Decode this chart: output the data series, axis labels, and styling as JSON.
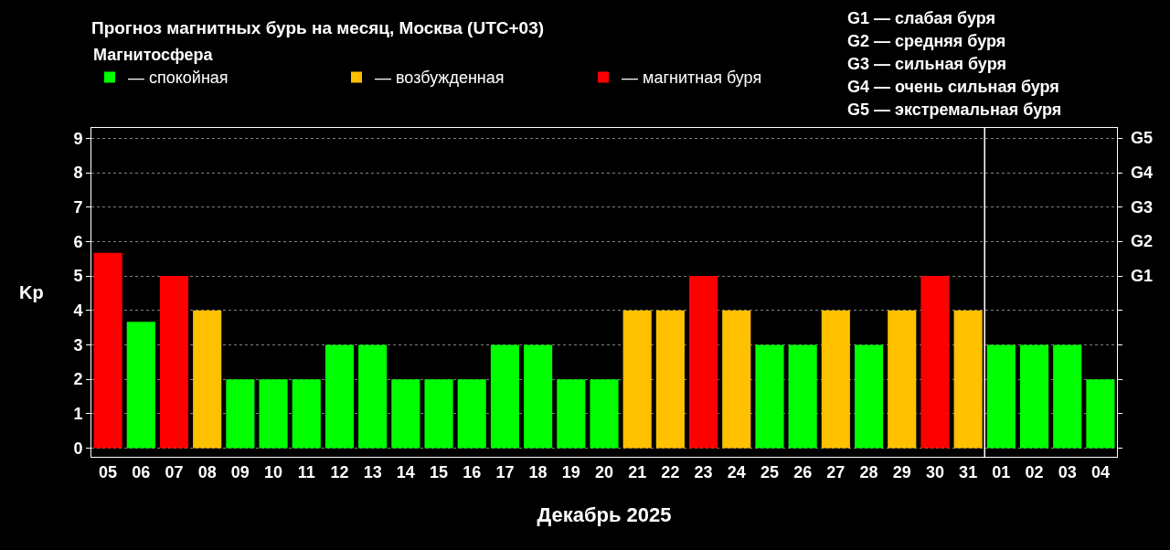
{
  "chart_data": {
    "type": "bar",
    "title": "Прогноз магнитных бурь на месяц, Москва (UTC+03)",
    "xlabel": "Декабрь 2025",
    "ylabel": "Kp",
    "legend_title": "Магнитосфера",
    "categories": [
      "05",
      "06",
      "07",
      "08",
      "09",
      "10",
      "11",
      "12",
      "13",
      "14",
      "15",
      "16",
      "17",
      "18",
      "19",
      "20",
      "21",
      "22",
      "23",
      "24",
      "25",
      "26",
      "27",
      "28",
      "29",
      "30",
      "31",
      "01",
      "02",
      "03",
      "04"
    ],
    "series": [
      {
        "name": "— спокойная",
        "color": "#00ff00",
        "values": [
          null,
          3.67,
          null,
          null,
          2,
          2,
          2,
          3,
          3,
          2,
          2,
          2,
          3,
          3,
          2,
          2,
          null,
          null,
          null,
          null,
          3,
          3,
          null,
          3,
          null,
          null,
          null,
          3,
          3,
          3,
          2
        ]
      },
      {
        "name": "— возбужденная",
        "color": "#ffc000",
        "values": [
          null,
          null,
          null,
          4,
          null,
          null,
          null,
          null,
          null,
          null,
          null,
          null,
          null,
          null,
          null,
          null,
          4,
          4,
          null,
          4,
          null,
          null,
          4,
          null,
          4,
          null,
          4,
          null,
          null,
          null,
          null
        ]
      },
      {
        "name": "— магнитная буря",
        "color": "#ff0000",
        "values": [
          5.67,
          null,
          5,
          null,
          null,
          null,
          null,
          null,
          null,
          null,
          null,
          null,
          null,
          null,
          null,
          null,
          null,
          null,
          5,
          null,
          null,
          null,
          null,
          null,
          null,
          5,
          null,
          null,
          null,
          null,
          null
        ]
      }
    ],
    "ylim": [
      -0.25,
      9.3
    ],
    "yticks": [
      0,
      1,
      2,
      3,
      4,
      5,
      6,
      7,
      8,
      9
    ],
    "ref_lines": [
      {
        "axis": "x",
        "value": "01",
        "color": "#ffffff"
      }
    ],
    "annotations": [
      "G1 — слабая буря",
      "G2 — средняя буря",
      "G3 — сильная буря",
      "G4 — очень сильная буря",
      "G5 — экстремальная буря",
      "G1",
      "G2",
      "G3",
      "G4",
      "G5"
    ],
    "grid": "y",
    "legend": "top left"
  }
}
